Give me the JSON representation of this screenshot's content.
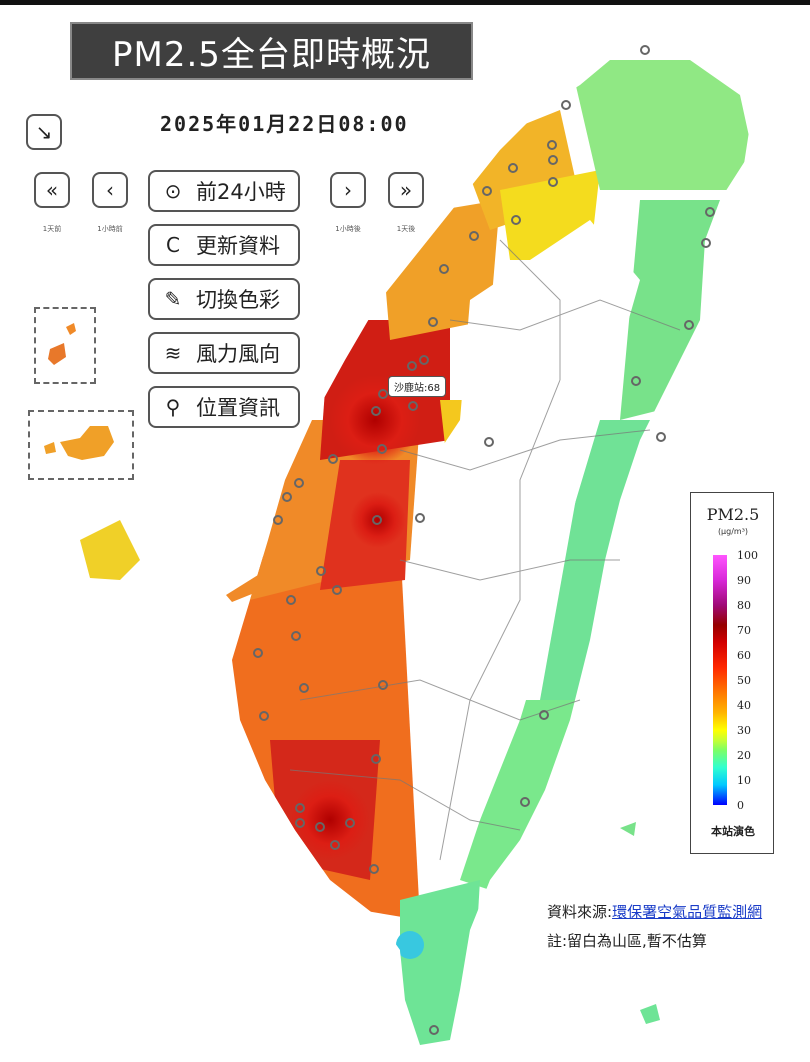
{
  "title": "PM2.5全台即時概況",
  "datetime": "2025年01月22日08:00",
  "nav": {
    "back_day": {
      "symbol": "«",
      "caption": "1天前"
    },
    "back_hour": {
      "symbol": "‹",
      "caption": "1小時前"
    },
    "fwd_hour": {
      "symbol": "›",
      "caption": "1小時後"
    },
    "fwd_day": {
      "symbol": "»",
      "caption": "1天後"
    },
    "collapse_symbol": "↘"
  },
  "menu": [
    {
      "icon": "play-circle-icon",
      "glyph": "⊙",
      "label": "前24小時"
    },
    {
      "icon": "refresh-icon",
      "glyph": "C",
      "label": "更新資料"
    },
    {
      "icon": "brush-icon",
      "glyph": "✎",
      "label": "切換色彩"
    },
    {
      "icon": "wind-icon",
      "glyph": "≋",
      "label": "風力風向"
    },
    {
      "icon": "location-pin-icon",
      "glyph": "⚲",
      "label": "位置資訊"
    }
  ],
  "tooltip": "沙鹿站:68",
  "legend": {
    "title": "PM2.5",
    "unit": "(μg/m³)",
    "ticks": [
      "100",
      "90",
      "80",
      "70",
      "60",
      "50",
      "40",
      "30",
      "20",
      "10",
      "0"
    ],
    "footer": "本站演色"
  },
  "source_label": "資料來源:",
  "source_link": "環保署空氣品質監測網",
  "note": "註:留白為山區,暫不估算",
  "colors": {
    "red": "#d41414",
    "orange": "#f27a1a",
    "yellow": "#f2d21a",
    "green": "#6ee68c",
    "cyan": "#38c8d8"
  }
}
